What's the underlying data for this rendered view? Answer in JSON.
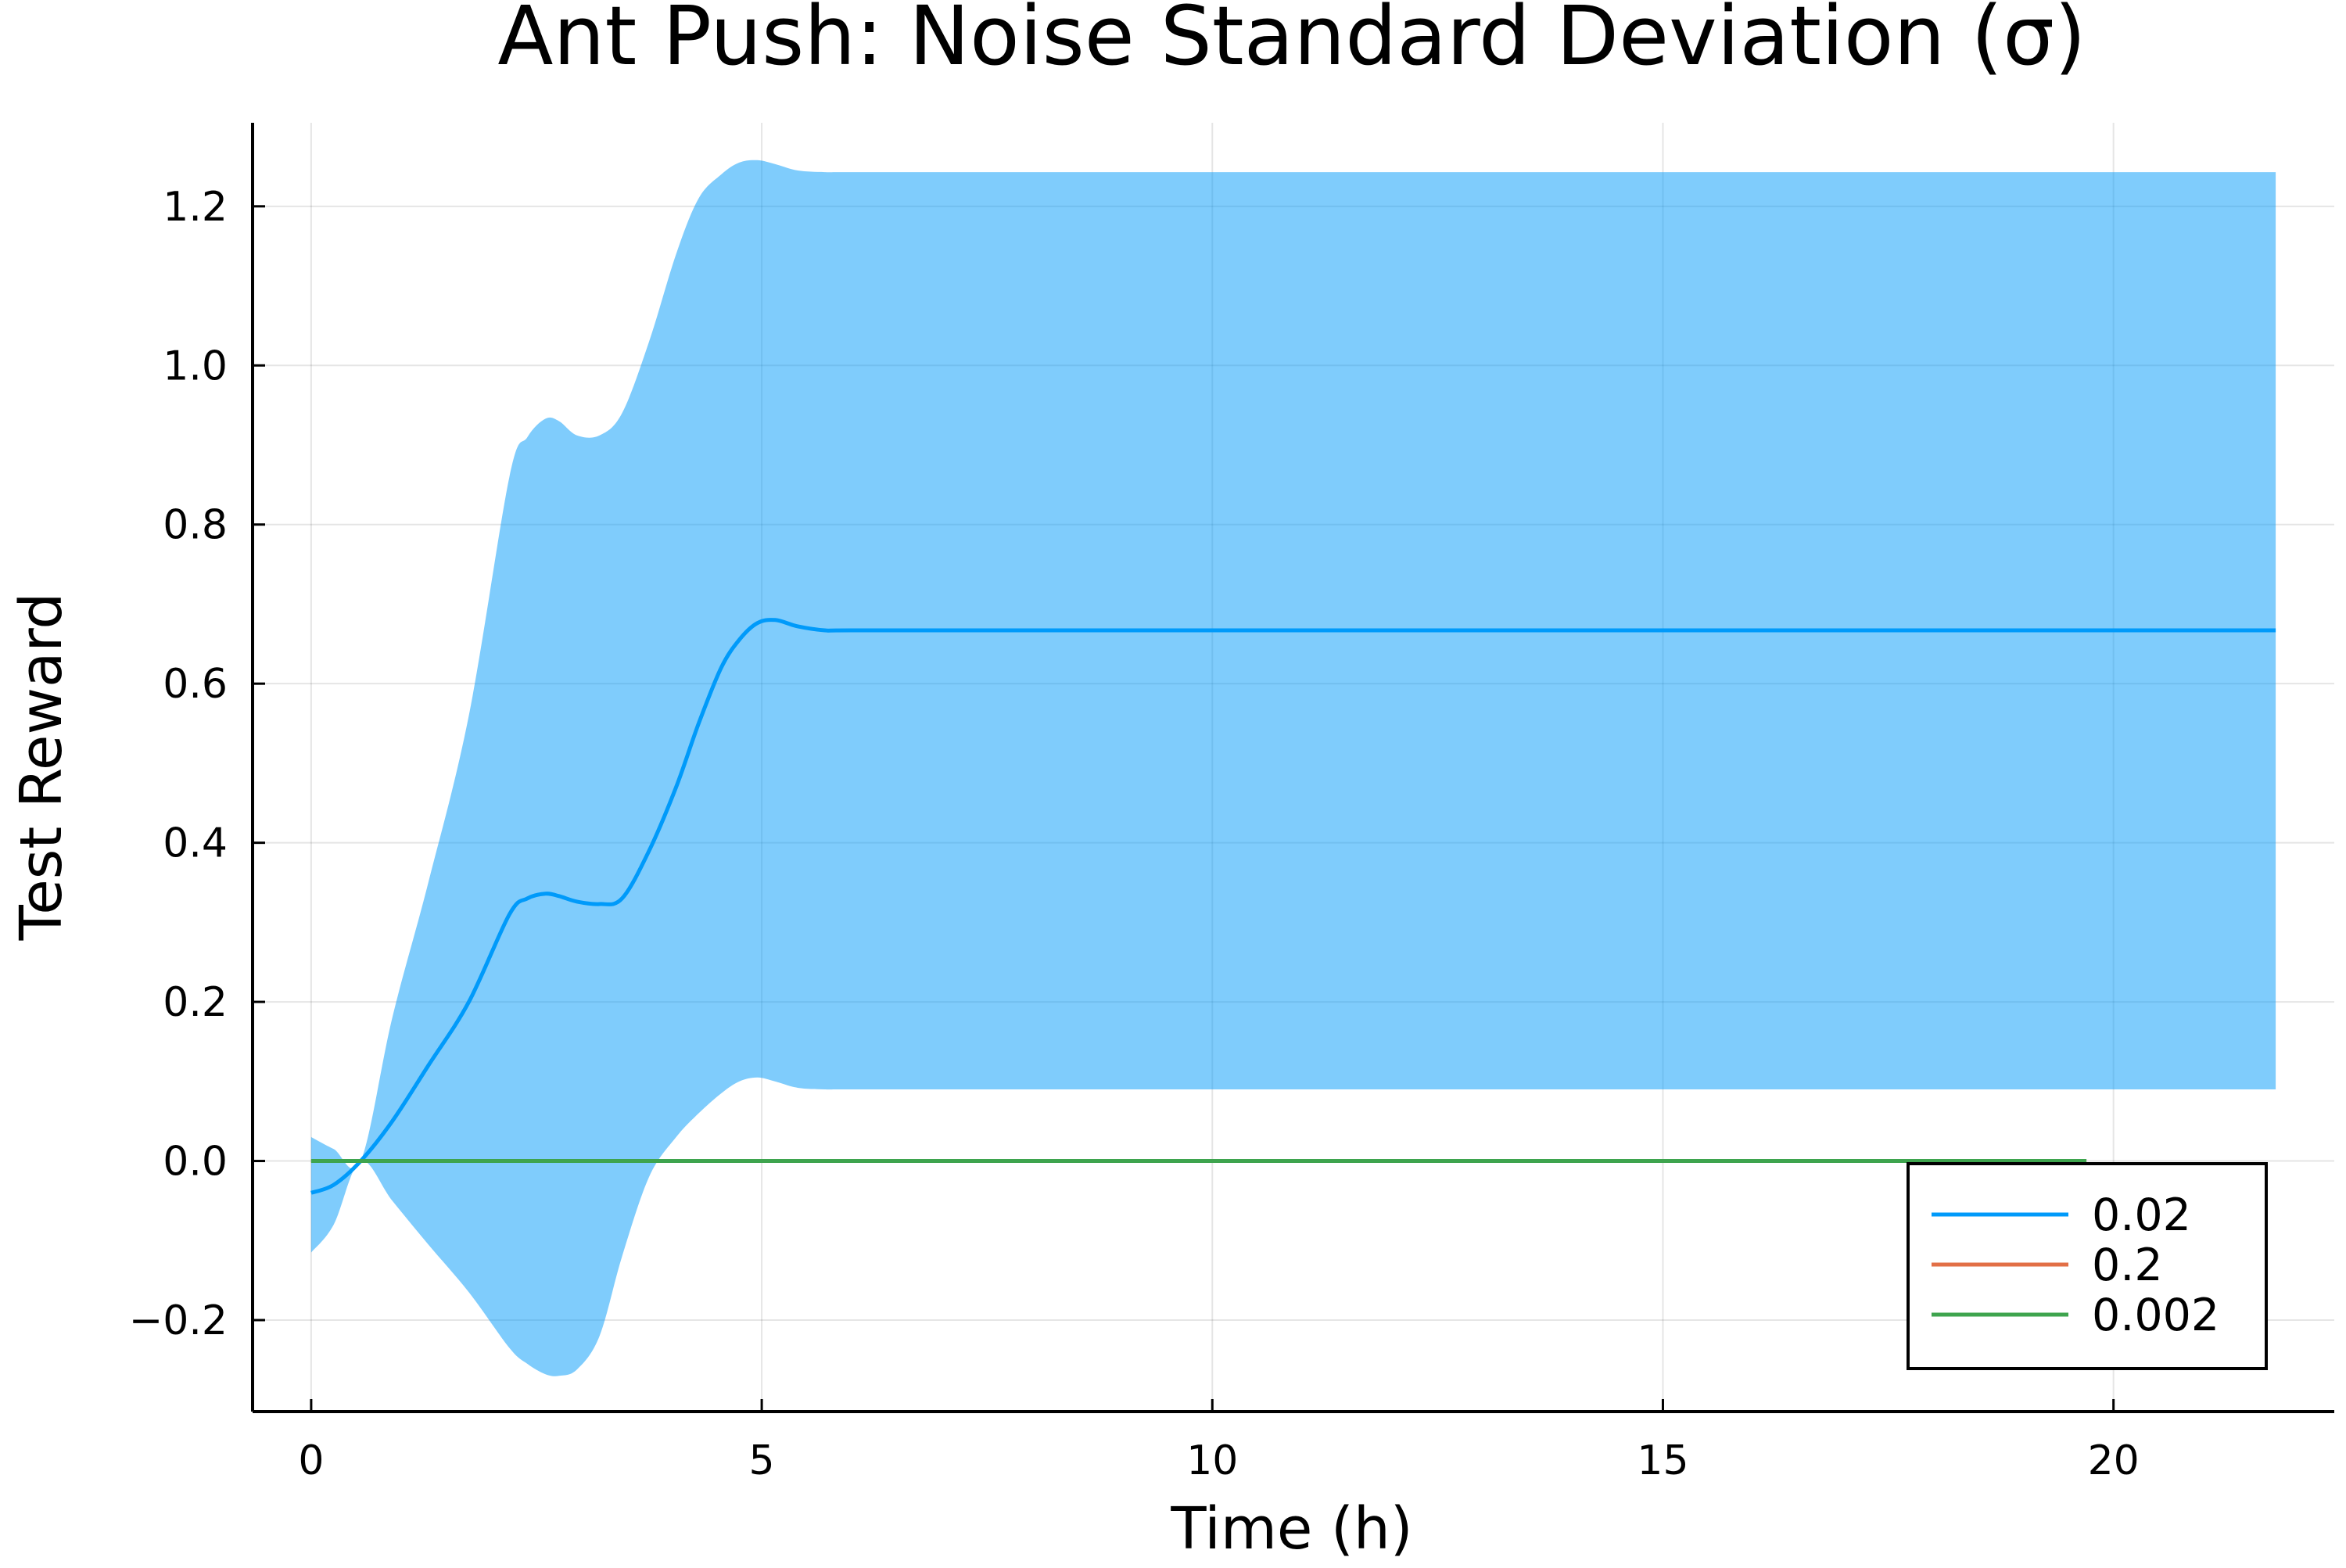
{
  "chart_data": {
    "type": "line",
    "title": "Ant Push: Noise Standard Deviation (σ)",
    "xlabel": "Time (h)",
    "ylabel": "Test Reward",
    "xlim": [
      -0.65,
      22.45
    ],
    "ylim": [
      -0.315,
      1.305
    ],
    "x_ticks": [
      0,
      5,
      10,
      15,
      20
    ],
    "x_tick_labels": [
      "0",
      "5",
      "10",
      "15",
      "20"
    ],
    "y_ticks": [
      -0.2,
      0.0,
      0.2,
      0.4,
      0.6,
      0.8,
      1.0,
      1.2
    ],
    "y_tick_labels": [
      "−0.2",
      "0.0",
      "0.2",
      "0.4",
      "0.6",
      "0.8",
      "1.0",
      "1.2"
    ],
    "grid": true,
    "legend_position": "bottom-right",
    "series": [
      {
        "name": "0.02",
        "color": "#009AFA",
        "x": [
          0,
          0.25,
          0.55,
          0.9,
          1.3,
          1.75,
          2.2,
          2.4,
          2.6,
          2.75,
          2.95,
          3.2,
          3.45,
          3.75,
          4.05,
          4.3,
          4.55,
          4.75,
          4.95,
          5.15,
          5.4,
          5.7,
          6.0,
          8,
          10,
          12,
          14,
          16,
          18,
          20,
          21.8
        ],
        "y": [
          -0.04,
          -0.03,
          0.0,
          0.05,
          0.12,
          0.2,
          0.31,
          0.33,
          0.336,
          0.333,
          0.326,
          0.323,
          0.33,
          0.39,
          0.47,
          0.55,
          0.62,
          0.655,
          0.676,
          0.68,
          0.672,
          0.667,
          0.667,
          0.667,
          0.667,
          0.667,
          0.667,
          0.667,
          0.667,
          0.667,
          0.667
        ],
        "band_upper": [
          0.03,
          0.015,
          0.0,
          0.18,
          0.35,
          0.56,
          0.86,
          0.91,
          0.933,
          0.93,
          0.912,
          0.912,
          0.94,
          1.03,
          1.14,
          1.21,
          1.24,
          1.255,
          1.258,
          1.253,
          1.245,
          1.243,
          1.243,
          1.243,
          1.243,
          1.243,
          1.243,
          1.243,
          1.243,
          1.243,
          1.243
        ],
        "band_lower": [
          -0.115,
          -0.08,
          0.0,
          -0.05,
          -0.105,
          -0.165,
          -0.235,
          -0.255,
          -0.268,
          -0.27,
          -0.262,
          -0.22,
          -0.12,
          -0.02,
          0.03,
          0.06,
          0.085,
          0.1,
          0.105,
          0.1,
          0.092,
          0.09,
          0.09,
          0.09,
          0.09,
          0.09,
          0.09,
          0.09,
          0.09,
          0.09,
          0.09
        ],
        "band_color": "#009AFA"
      },
      {
        "name": "0.2",
        "color": "#E26F46",
        "x": [
          0,
          5,
          10,
          15,
          19.7
        ],
        "y": [
          0.0,
          0.0,
          0.0,
          0.0,
          0.0
        ]
      },
      {
        "name": "0.002",
        "color": "#3EA44E",
        "x": [
          0,
          5,
          10,
          15,
          19.7
        ],
        "y": [
          0.0,
          0.0,
          0.0,
          0.0,
          0.0
        ]
      }
    ]
  }
}
